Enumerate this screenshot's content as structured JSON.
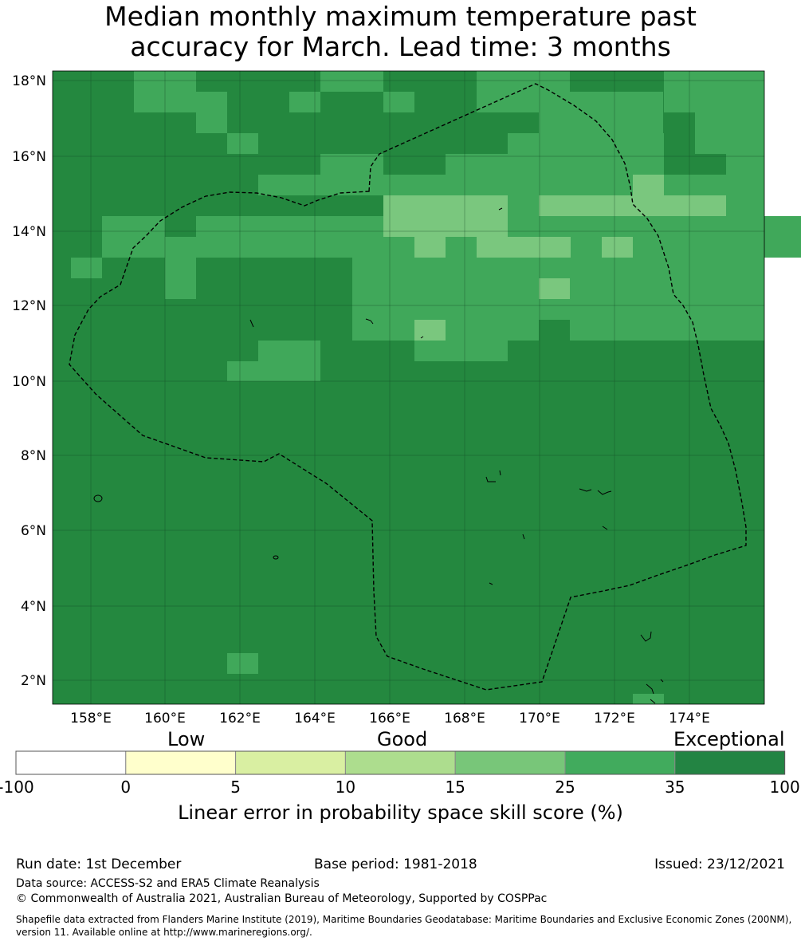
{
  "title": {
    "line1": "Median monthly maximum temperature past",
    "line2": "accuracy for March. Lead time: 3 months"
  },
  "map": {
    "lat_ticks": [
      "18°N",
      "16°N",
      "14°N",
      "12°N",
      "10°N",
      "8°N",
      "6°N",
      "4°N",
      "2°N"
    ],
    "lon_ticks": [
      "158°E",
      "160°E",
      "162°E",
      "164°E",
      "166°E",
      "168°E",
      "170°E",
      "172°E",
      "174°E"
    ],
    "colors": {
      "exceptional": "#24883f",
      "good_high": "#40a85a",
      "good_mid": "#7ac77e",
      "good_low": "#a9dc8e"
    }
  },
  "colorbar": {
    "labels": {
      "low": "Low",
      "good": "Good",
      "exceptional": "Exceptional"
    },
    "ticks": [
      "-100",
      "0",
      "5",
      "10",
      "15",
      "25",
      "35",
      "100"
    ],
    "colors": [
      "#ffffff",
      "#ffffcc",
      "#d9efa2",
      "#addd8e",
      "#78c679",
      "#41ab5d",
      "#238443"
    ],
    "title": "Linear error in probability space skill score (%)"
  },
  "footer": {
    "run_date": "Run date: 1st December",
    "base_period": "Base period: 1981-2018",
    "issued": "Issued: 23/12/2021",
    "data_source": "Data source: ACCESS-S2 and ERA5 Climate Reanalysis",
    "copyright": "© Commonwealth of Australia 2021, Australian Bureau of Meteorology, Supported by COSPPac",
    "shapefile_1": "Shapefile data extracted from Flanders Marine Institute (2019), Maritime Boundaries Geodatabase: Maritime Boundaries and Exclusive Economic Zones (200NM),",
    "shapefile_2": "version 11. Available online at http://www.marineregions.org/."
  }
}
